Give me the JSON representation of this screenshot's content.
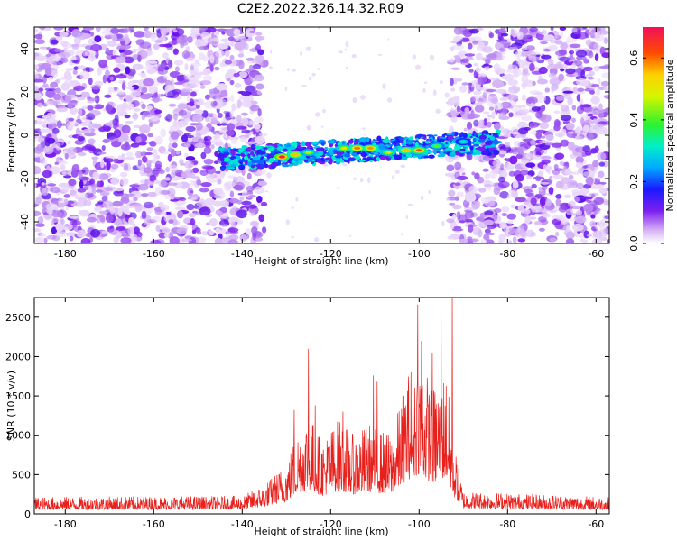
{
  "title": "C2E2.2022.326.14.32.R09",
  "colors": {
    "snr_line": "#e8201c",
    "frame": "#000000"
  },
  "chart_data": [
    {
      "type": "heatmap",
      "name": "spectrogram",
      "xlabel": "Height of straight line (km)",
      "ylabel": "Frequency (Hz)",
      "xlim": [
        -187,
        -57
      ],
      "ylim": [
        -50,
        50
      ],
      "xticks": [
        -180,
        -160,
        -140,
        -120,
        -100,
        -80,
        -60
      ],
      "yticks": [
        -40,
        -20,
        0,
        20,
        40
      ],
      "noise_regions": [
        [
          -187,
          -135
        ],
        [
          -93,
          -57
        ]
      ],
      "signal_band": {
        "x_range": [
          -145,
          -82
        ],
        "center_hz": [
          -11,
          -3
        ],
        "half_width_hz": 5
      },
      "hotspots": [
        {
          "x": -131,
          "y": -10,
          "level": 0.68
        },
        {
          "x": -128,
          "y": -9,
          "level": 0.55
        },
        {
          "x": -125,
          "y": -8,
          "level": 0.45
        },
        {
          "x": -117,
          "y": -6,
          "level": 0.5
        },
        {
          "x": -114,
          "y": -6,
          "level": 0.6
        },
        {
          "x": -111,
          "y": -6,
          "level": 0.58
        },
        {
          "x": -107,
          "y": -8,
          "level": 0.48
        },
        {
          "x": -103,
          "y": -7,
          "level": 0.55
        },
        {
          "x": -100,
          "y": -7,
          "level": 0.62
        },
        {
          "x": -96,
          "y": -5,
          "level": 0.4
        },
        {
          "x": -90,
          "y": -3,
          "level": 0.32
        }
      ],
      "colorbar": {
        "label": "Normalized spectral amplitude",
        "range": [
          0,
          0.7
        ],
        "ticks": [
          0.0,
          0.2,
          0.4,
          0.6
        ]
      }
    },
    {
      "type": "line",
      "name": "snr",
      "xlabel": "Height of straight line (km)",
      "ylabel": "SNR (10 * v/v)",
      "xlim": [
        -187,
        -57
      ],
      "ylim": [
        0,
        2750
      ],
      "xticks": [
        -180,
        -160,
        -140,
        -120,
        -100,
        -80,
        -60
      ],
      "yticks": [
        0,
        500,
        1000,
        1500,
        2000,
        2500
      ],
      "envelope": [
        {
          "x": -187,
          "y": 150
        },
        {
          "x": -140,
          "y": 160
        },
        {
          "x": -135,
          "y": 260
        },
        {
          "x": -130,
          "y": 450
        },
        {
          "x": -128,
          "y": 700
        },
        {
          "x": -125,
          "y": 900
        },
        {
          "x": -122,
          "y": 650
        },
        {
          "x": -118,
          "y": 850
        },
        {
          "x": -115,
          "y": 700
        },
        {
          "x": -111,
          "y": 800
        },
        {
          "x": -109,
          "y": 750
        },
        {
          "x": -106,
          "y": 700
        },
        {
          "x": -103,
          "y": 1200
        },
        {
          "x": -100,
          "y": 1450
        },
        {
          "x": -97,
          "y": 1100
        },
        {
          "x": -94,
          "y": 1300
        },
        {
          "x": -92,
          "y": 600
        },
        {
          "x": -90,
          "y": 200
        },
        {
          "x": -57,
          "y": 150
        }
      ],
      "peaks": [
        {
          "x": -128.2,
          "y": 1320
        },
        {
          "x": -125.0,
          "y": 2100
        },
        {
          "x": -123.5,
          "y": 1380
        },
        {
          "x": -117.2,
          "y": 1300
        },
        {
          "x": -110.3,
          "y": 1760
        },
        {
          "x": -109.5,
          "y": 1680
        },
        {
          "x": -101.8,
          "y": 1800
        },
        {
          "x": -100.3,
          "y": 2660
        },
        {
          "x": -99.5,
          "y": 2200
        },
        {
          "x": -97.0,
          "y": 2050
        },
        {
          "x": -95.0,
          "y": 2600
        },
        {
          "x": -92.5,
          "y": 2740
        }
      ]
    }
  ]
}
